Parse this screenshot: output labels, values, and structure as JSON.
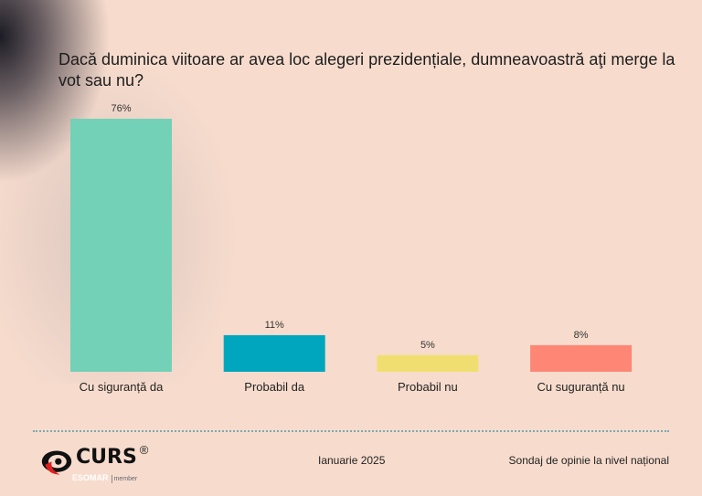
{
  "title": "Dacă duminica viitoare ar avea loc alegeri prezidențiale, dumneavoastră aţi merge la vot sau nu?",
  "chart_data": {
    "type": "bar",
    "categories": [
      "Cu siguranță da",
      "Probabil da",
      "Probabil nu",
      "Cu suguranță nu"
    ],
    "values": [
      76,
      11,
      5,
      8
    ],
    "data_labels": [
      "76%",
      "11%",
      "5%",
      "8%"
    ],
    "colors": [
      "#72d1b6",
      "#00a6bd",
      "#f0df70",
      "#fd8674"
    ],
    "ylim": [
      0,
      76
    ],
    "grid": false,
    "legend": "none"
  },
  "footer": {
    "logo_text": "CURS",
    "logo_reg": "®",
    "esomar": "ESOMAR",
    "member": "member",
    "date": "Ianuarie 2025",
    "survey": "Sondaj de opinie la nivel național"
  }
}
